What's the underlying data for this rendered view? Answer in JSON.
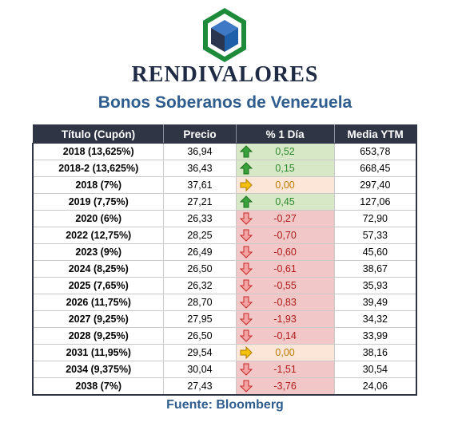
{
  "brand": {
    "name": "RENDIVALORES",
    "logo": "hexagon-cube-logo",
    "colors": {
      "green": "#1e8b3a",
      "navy": "#1f2a44",
      "blue": "#2e5d8e"
    }
  },
  "title": "Bonos Soberanos de Venezuela",
  "table": {
    "headers": [
      "Título (Cupón)",
      "Precio",
      "% 1 Día",
      "Media YTM"
    ],
    "rows": [
      {
        "titulo": "2018 (13,625%)",
        "precio": "36,94",
        "cambio": "0,52",
        "trend": "up",
        "ytm": "653,78"
      },
      {
        "titulo": "2018-2 (13,625%)",
        "precio": "36,43",
        "cambio": "0,15",
        "trend": "up",
        "ytm": "668,45"
      },
      {
        "titulo": "2018 (7%)",
        "precio": "37,61",
        "cambio": "0,00",
        "trend": "flat",
        "ytm": "297,40"
      },
      {
        "titulo": "2019 (7,75%)",
        "precio": "27,21",
        "cambio": "0,45",
        "trend": "up",
        "ytm": "127,06"
      },
      {
        "titulo": "2020 (6%)",
        "precio": "26,33",
        "cambio": "-0,27",
        "trend": "down",
        "ytm": "72,90"
      },
      {
        "titulo": "2022 (12,75%)",
        "precio": "28,25",
        "cambio": "-0,70",
        "trend": "down",
        "ytm": "57,33"
      },
      {
        "titulo": "2023 (9%)",
        "precio": "26,49",
        "cambio": "-0,60",
        "trend": "down",
        "ytm": "45,60"
      },
      {
        "titulo": "2024 (8,25%)",
        "precio": "26,50",
        "cambio": "-0,61",
        "trend": "down",
        "ytm": "38,67"
      },
      {
        "titulo": "2025 (7,65%)",
        "precio": "26,32",
        "cambio": "-0,55",
        "trend": "down",
        "ytm": "35,93"
      },
      {
        "titulo": "2026 (11,75%)",
        "precio": "28,70",
        "cambio": "-0,83",
        "trend": "down",
        "ytm": "39,49"
      },
      {
        "titulo": "2027 (9,25%)",
        "precio": "27,95",
        "cambio": "-1,93",
        "trend": "down",
        "ytm": "34,32"
      },
      {
        "titulo": "2028 (9,25%)",
        "precio": "26,50",
        "cambio": "-0,14",
        "trend": "down",
        "ytm": "33,99"
      },
      {
        "titulo": "2031 (11,95%)",
        "precio": "29,54",
        "cambio": "0,00",
        "trend": "flat",
        "ytm": "38,16"
      },
      {
        "titulo": "2034 (9,375%)",
        "precio": "30,04",
        "cambio": "-1,51",
        "trend": "down",
        "ytm": "30,54"
      },
      {
        "titulo": "2038 (7%)",
        "precio": "27,43",
        "cambio": "-3,76",
        "trend": "down",
        "ytm": "24,06"
      }
    ],
    "trend_icons": {
      "up": "green-up-arrow-icon",
      "flat": "yellow-right-arrow-icon",
      "down": "red-down-arrow-icon"
    },
    "trend_colors": {
      "up": "#2f8a2f",
      "flat": "#c07a00",
      "down": "#b01c1c"
    }
  },
  "source": "Fuente: Bloomberg"
}
